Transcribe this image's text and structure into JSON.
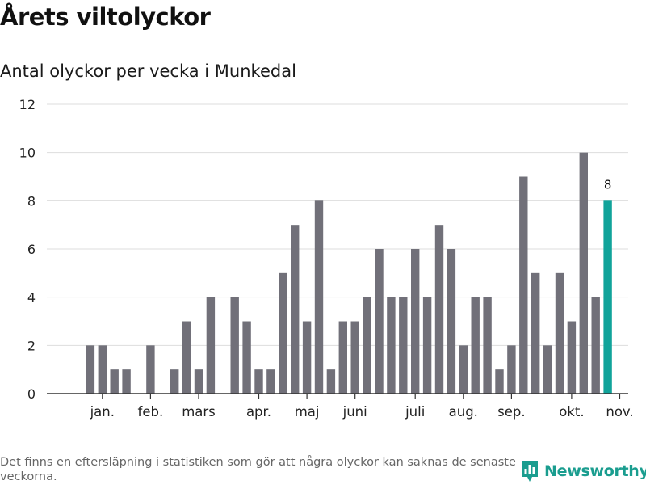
{
  "title": "Årets viltolyckor",
  "subtitle": "Antal olyckor per vecka i Munkedal",
  "footnote": "Det finns en eftersläpning i statistiken som gör att några olyckor kan saknas de senaste veckorna.",
  "brand": {
    "name": "Newsworthy",
    "logo_icon": "bar-chart-speech-bubble-icon"
  },
  "colors": {
    "bar": "#717079",
    "highlight": "#11a39a",
    "grid": "#dddddd",
    "axis": "#333333",
    "brand": "#1a9d8f"
  },
  "chart_data": {
    "type": "bar",
    "title": "Antal olyckor per vecka i Munkedal",
    "xlabel": "",
    "ylabel": "",
    "ylim": [
      0,
      12
    ],
    "yticks": [
      0,
      2,
      4,
      6,
      8,
      10,
      12
    ],
    "grid": true,
    "weeks": [
      1,
      2,
      3,
      4,
      5,
      6,
      7,
      8,
      9,
      10,
      11,
      12,
      13,
      14,
      15,
      16,
      17,
      18,
      19,
      20,
      21,
      22,
      23,
      24,
      25,
      26,
      27,
      28,
      29,
      30,
      31,
      32,
      33,
      34,
      35,
      36,
      37,
      38,
      39,
      40,
      41,
      42,
      43,
      44,
      45
    ],
    "values": [
      0,
      2,
      2,
      1,
      1,
      0,
      2,
      0,
      1,
      3,
      1,
      4,
      0,
      4,
      3,
      1,
      1,
      5,
      7,
      3,
      8,
      1,
      3,
      3,
      4,
      6,
      4,
      4,
      6,
      4,
      7,
      6,
      2,
      4,
      4,
      1,
      2,
      9,
      5,
      2,
      5,
      3,
      10,
      4,
      8
    ],
    "highlight_index": 44,
    "highlight_label": "8",
    "month_labels": [
      {
        "label": "jan.",
        "week": 3
      },
      {
        "label": "feb.",
        "week": 7
      },
      {
        "label": "mars",
        "week": 11
      },
      {
        "label": "apr.",
        "week": 16
      },
      {
        "label": "maj",
        "week": 20
      },
      {
        "label": "juni",
        "week": 24
      },
      {
        "label": "juli",
        "week": 29
      },
      {
        "label": "aug.",
        "week": 33
      },
      {
        "label": "sep.",
        "week": 37
      },
      {
        "label": "okt.",
        "week": 42
      },
      {
        "label": "nov.",
        "week": 46
      }
    ]
  }
}
